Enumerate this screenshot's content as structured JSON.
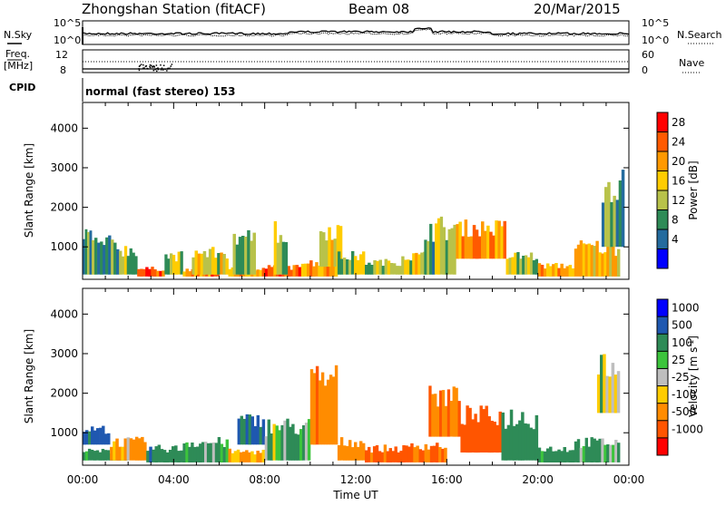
{
  "header": {
    "station": "Zhongshan Station (fitACF)",
    "beam": "Beam 08",
    "date": "20/Mar/2015"
  },
  "noise_panel": {
    "left_label": "N.Sky",
    "right_label": "N.Search",
    "left_ticks": [
      "10^5",
      "10^0"
    ],
    "right_ticks": [
      "10^5",
      "10^0"
    ]
  },
  "freq_panel": {
    "left_label_line1": "Freq.",
    "left_label_line2": "[MHz]",
    "right_label": "Nave",
    "left_ticks": [
      "12",
      "8"
    ],
    "right_ticks": [
      "60",
      "0"
    ]
  },
  "cpid": {
    "label": "CPID",
    "text": "normal (fast stereo) 153"
  },
  "x_axis": {
    "label": "Time UT",
    "ticks": [
      "00:00",
      "04:00",
      "08:00",
      "12:00",
      "16:00",
      "20:00",
      "00:00"
    ]
  },
  "power_colorbar": {
    "label": "Power [dB]",
    "ticks": [
      "28",
      "24",
      "20",
      "16",
      "12",
      "8",
      "4"
    ],
    "colors": [
      "#ff0000",
      "#ff5a00",
      "#ff9900",
      "#ffcc00",
      "#b8c24a",
      "#2e8b57",
      "#246b9e",
      "#0000ff"
    ]
  },
  "velocity_colorbar": {
    "label_main": "Velocity  [m s",
    "label_sup": "-1",
    "label_end": "]",
    "ticks": [
      "1000",
      "500",
      "100",
      "25",
      "-25",
      "-100",
      "-500",
      "-1000"
    ],
    "colors": [
      "#0000ff",
      "#1f58b0",
      "#2e8b57",
      "#3cc43c",
      "#bebebe",
      "#ffcc00",
      "#ff8c00",
      "#ff5500",
      "#ff0000"
    ]
  },
  "chart_data": [
    {
      "type": "line",
      "title": "N.Sky / N.Search",
      "x_range": [
        "00:00",
        "24:00"
      ],
      "yscale": "log",
      "ylim": [
        1,
        100000
      ]
    },
    {
      "type": "line",
      "title": "Freq. [MHz] / Nave",
      "x_range": [
        "00:00",
        "24:00"
      ],
      "ylim_left": [
        8,
        12
      ],
      "ylim_right": [
        0,
        60
      ]
    },
    {
      "type": "heatmap",
      "quantity": "Power [dB]",
      "xlabel": "Time UT",
      "ylabel": "Slant Range [km]",
      "yticks": [
        1000,
        2000,
        3000,
        4000
      ],
      "ylim": [
        180,
        4650
      ],
      "clim": [
        0,
        30
      ],
      "blocks": [
        {
          "t": [
            0.0,
            0.4
          ],
          "r": [
            300,
            1600
          ],
          "v": 10
        },
        {
          "t": [
            0.4,
            1.6
          ],
          "r": [
            300,
            1300
          ],
          "v": 9
        },
        {
          "t": [
            1.6,
            2.4
          ],
          "r": [
            300,
            1100
          ],
          "v": 12
        },
        {
          "t": [
            2.4,
            3.6
          ],
          "r": [
            250,
            500
          ],
          "v": 24
        },
        {
          "t": [
            3.6,
            4.4
          ],
          "r": [
            300,
            900
          ],
          "v": 14
        },
        {
          "t": [
            4.4,
            6.0
          ],
          "r": [
            250,
            450
          ],
          "v": 22
        },
        {
          "t": [
            4.8,
            6.4
          ],
          "r": [
            300,
            1000
          ],
          "v": 16
        },
        {
          "t": [
            6.4,
            8.0
          ],
          "r": [
            250,
            500
          ],
          "v": 20
        },
        {
          "t": [
            6.6,
            7.6
          ],
          "r": [
            300,
            1500
          ],
          "v": 10
        },
        {
          "t": [
            8.0,
            9.6
          ],
          "r": [
            250,
            550
          ],
          "v": 24
        },
        {
          "t": [
            8.4,
            9.0
          ],
          "r": [
            300,
            1700
          ],
          "v": 12
        },
        {
          "t": [
            9.6,
            11.2
          ],
          "r": [
            250,
            700
          ],
          "v": 20
        },
        {
          "t": [
            10.4,
            11.4
          ],
          "r": [
            500,
            1700
          ],
          "v": 16
        },
        {
          "t": [
            11.2,
            12.4
          ],
          "r": [
            300,
            900
          ],
          "v": 14
        },
        {
          "t": [
            12.4,
            14.0
          ],
          "r": [
            300,
            700
          ],
          "v": 12
        },
        {
          "t": [
            14.0,
            15.2
          ],
          "r": [
            300,
            900
          ],
          "v": 16
        },
        {
          "t": [
            15.0,
            16.4
          ],
          "r": [
            300,
            1800
          ],
          "v": 12
        },
        {
          "t": [
            16.4,
            18.6
          ],
          "r": [
            700,
            1700
          ],
          "v": 22
        },
        {
          "t": [
            18.6,
            20.0
          ],
          "r": [
            300,
            900
          ],
          "v": 14
        },
        {
          "t": [
            20.0,
            21.6
          ],
          "r": [
            250,
            600
          ],
          "v": 20
        },
        {
          "t": [
            21.6,
            23.6
          ],
          "r": [
            250,
            1200
          ],
          "v": 18
        },
        {
          "t": [
            22.8,
            23.8
          ],
          "r": [
            1000,
            3000
          ],
          "v": 10
        }
      ]
    },
    {
      "type": "heatmap",
      "quantity": "Velocity [m s^-1]",
      "xlabel": "Time UT",
      "ylabel": "Slant Range [km]",
      "yticks": [
        1000,
        2000,
        3000,
        4000
      ],
      "ylim": [
        180,
        4650
      ],
      "clim": [
        -1000,
        1000
      ],
      "blocks": [
        {
          "t": [
            0.0,
            1.2
          ],
          "r": [
            700,
            1200
          ],
          "v": 600
        },
        {
          "t": [
            0.0,
            2.0
          ],
          "r": [
            300,
            600
          ],
          "v": 200
        },
        {
          "t": [
            1.2,
            2.8
          ],
          "r": [
            300,
            900
          ],
          "v": -150
        },
        {
          "t": [
            2.8,
            4.4
          ],
          "r": [
            250,
            700
          ],
          "v": 400
        },
        {
          "t": [
            4.4,
            6.4
          ],
          "r": [
            250,
            900
          ],
          "v": 150
        },
        {
          "t": [
            6.4,
            8.0
          ],
          "r": [
            250,
            600
          ],
          "v": -200
        },
        {
          "t": [
            6.8,
            8.0
          ],
          "r": [
            700,
            1500
          ],
          "v": 500
        },
        {
          "t": [
            8.0,
            10.0
          ],
          "r": [
            300,
            1400
          ],
          "v": 120
        },
        {
          "t": [
            10.0,
            11.2
          ],
          "r": [
            700,
            2800
          ],
          "v": -400
        },
        {
          "t": [
            11.2,
            12.4
          ],
          "r": [
            300,
            900
          ],
          "v": -300
        },
        {
          "t": [
            12.4,
            14.4
          ],
          "r": [
            250,
            700
          ],
          "v": -600
        },
        {
          "t": [
            14.4,
            16.0
          ],
          "r": [
            250,
            800
          ],
          "v": -450
        },
        {
          "t": [
            15.2,
            16.6
          ],
          "r": [
            900,
            2200
          ],
          "v": -500
        },
        {
          "t": [
            16.6,
            18.4
          ],
          "r": [
            500,
            1700
          ],
          "v": -700
        },
        {
          "t": [
            18.4,
            20.0
          ],
          "r": [
            300,
            1700
          ],
          "v": 300
        },
        {
          "t": [
            20.0,
            21.6
          ],
          "r": [
            250,
            700
          ],
          "v": 200
        },
        {
          "t": [
            21.6,
            23.6
          ],
          "r": [
            250,
            900
          ],
          "v": 120
        },
        {
          "t": [
            22.6,
            23.6
          ],
          "r": [
            1500,
            3000
          ],
          "v": 0
        }
      ]
    }
  ]
}
